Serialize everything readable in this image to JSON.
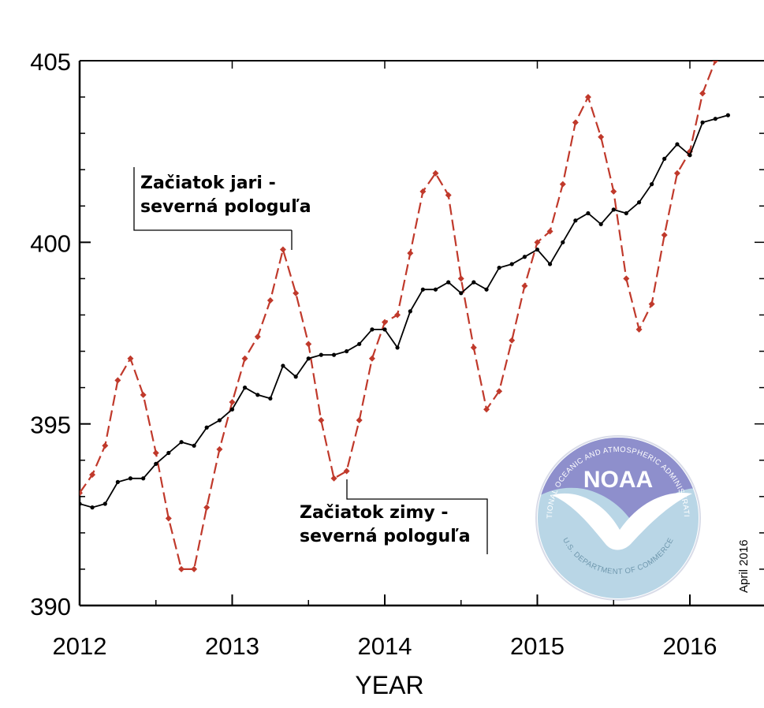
{
  "chart_data": {
    "type": "line",
    "xlabel": "YEAR",
    "x_ticks": [
      2012,
      2013,
      2014,
      2015,
      2016
    ],
    "y_ticks": [
      390,
      395,
      400,
      405
    ],
    "xlim": [
      2012,
      2016.5
    ],
    "ylim": [
      390,
      405
    ],
    "grid": false,
    "series": [
      {
        "color": "#c0392b",
        "style": "dashed",
        "marker": "diamond",
        "x": [
          2012.0,
          2012.083,
          2012.167,
          2012.25,
          2012.333,
          2012.417,
          2012.5,
          2012.583,
          2012.667,
          2012.75,
          2012.833,
          2012.917,
          2013.0,
          2013.083,
          2013.167,
          2013.25,
          2013.333,
          2013.417,
          2013.5,
          2013.583,
          2013.667,
          2013.75,
          2013.833,
          2013.917,
          2014.0,
          2014.083,
          2014.167,
          2014.25,
          2014.333,
          2014.417,
          2014.5,
          2014.583,
          2014.667,
          2014.75,
          2014.833,
          2014.917,
          2015.0,
          2015.083,
          2015.167,
          2015.25,
          2015.333,
          2015.417,
          2015.5,
          2015.583,
          2015.667,
          2015.75,
          2015.833,
          2015.917,
          2016.0,
          2016.083,
          2016.167,
          2016.25
        ],
        "y": [
          393.1,
          393.6,
          394.4,
          396.2,
          396.8,
          395.8,
          394.2,
          392.4,
          391.0,
          391.0,
          392.7,
          394.3,
          395.6,
          396.8,
          397.4,
          398.4,
          399.8,
          398.6,
          397.2,
          395.1,
          393.5,
          393.7,
          395.1,
          396.8,
          397.8,
          398.0,
          399.7,
          401.4,
          401.9,
          401.3,
          399.0,
          397.1,
          395.4,
          395.9,
          397.3,
          398.8,
          400.0,
          400.3,
          401.6,
          403.3,
          404.0,
          402.9,
          401.4,
          399.0,
          397.6,
          398.3,
          400.2,
          401.9,
          402.5,
          404.1,
          405.0,
          405.6
        ]
      },
      {
        "color": "#000000",
        "style": "solid",
        "marker": "dot",
        "x": [
          2012.0,
          2012.083,
          2012.167,
          2012.25,
          2012.333,
          2012.417,
          2012.5,
          2012.583,
          2012.667,
          2012.75,
          2012.833,
          2012.917,
          2013.0,
          2013.083,
          2013.167,
          2013.25,
          2013.333,
          2013.417,
          2013.5,
          2013.583,
          2013.667,
          2013.75,
          2013.833,
          2013.917,
          2014.0,
          2014.083,
          2014.167,
          2014.25,
          2014.333,
          2014.417,
          2014.5,
          2014.583,
          2014.667,
          2014.75,
          2014.833,
          2014.917,
          2015.0,
          2015.083,
          2015.167,
          2015.25,
          2015.333,
          2015.417,
          2015.5,
          2015.583,
          2015.667,
          2015.75,
          2015.833,
          2015.917,
          2016.0,
          2016.083,
          2016.167,
          2016.25
        ],
        "y": [
          392.8,
          392.7,
          392.8,
          393.4,
          393.5,
          393.5,
          393.9,
          394.2,
          394.5,
          394.4,
          394.9,
          395.1,
          395.4,
          396.0,
          395.8,
          395.7,
          396.6,
          396.3,
          396.8,
          396.9,
          396.9,
          397.0,
          397.2,
          397.6,
          397.6,
          397.1,
          398.1,
          398.7,
          398.7,
          398.9,
          398.6,
          398.9,
          398.7,
          399.3,
          399.4,
          399.6,
          399.8,
          399.4,
          400.0,
          400.6,
          400.8,
          400.5,
          400.9,
          400.8,
          401.1,
          401.6,
          402.3,
          402.7,
          402.4,
          403.3,
          403.4,
          403.5
        ]
      }
    ]
  },
  "annotations": {
    "spring_line1": "Začiatok jari -",
    "spring_line2": "severná pologuľa",
    "winter_line1": "Začiatok zimy -",
    "winter_line2": "severná pologuľa"
  },
  "logo": {
    "wordmark": "NOAA",
    "ring_text_top": "NATIONAL OCEANIC AND ATMOSPHERIC ADMINISTRATION",
    "ring_text_bottom": "U.S. DEPARTMENT OF COMMERCE"
  },
  "date_stamp": "April 2016",
  "colors": {
    "seasonal": "#c0392b",
    "trend": "#000000",
    "logo_top": "#8e8fcc",
    "logo_bottom": "#b9d6e6"
  }
}
